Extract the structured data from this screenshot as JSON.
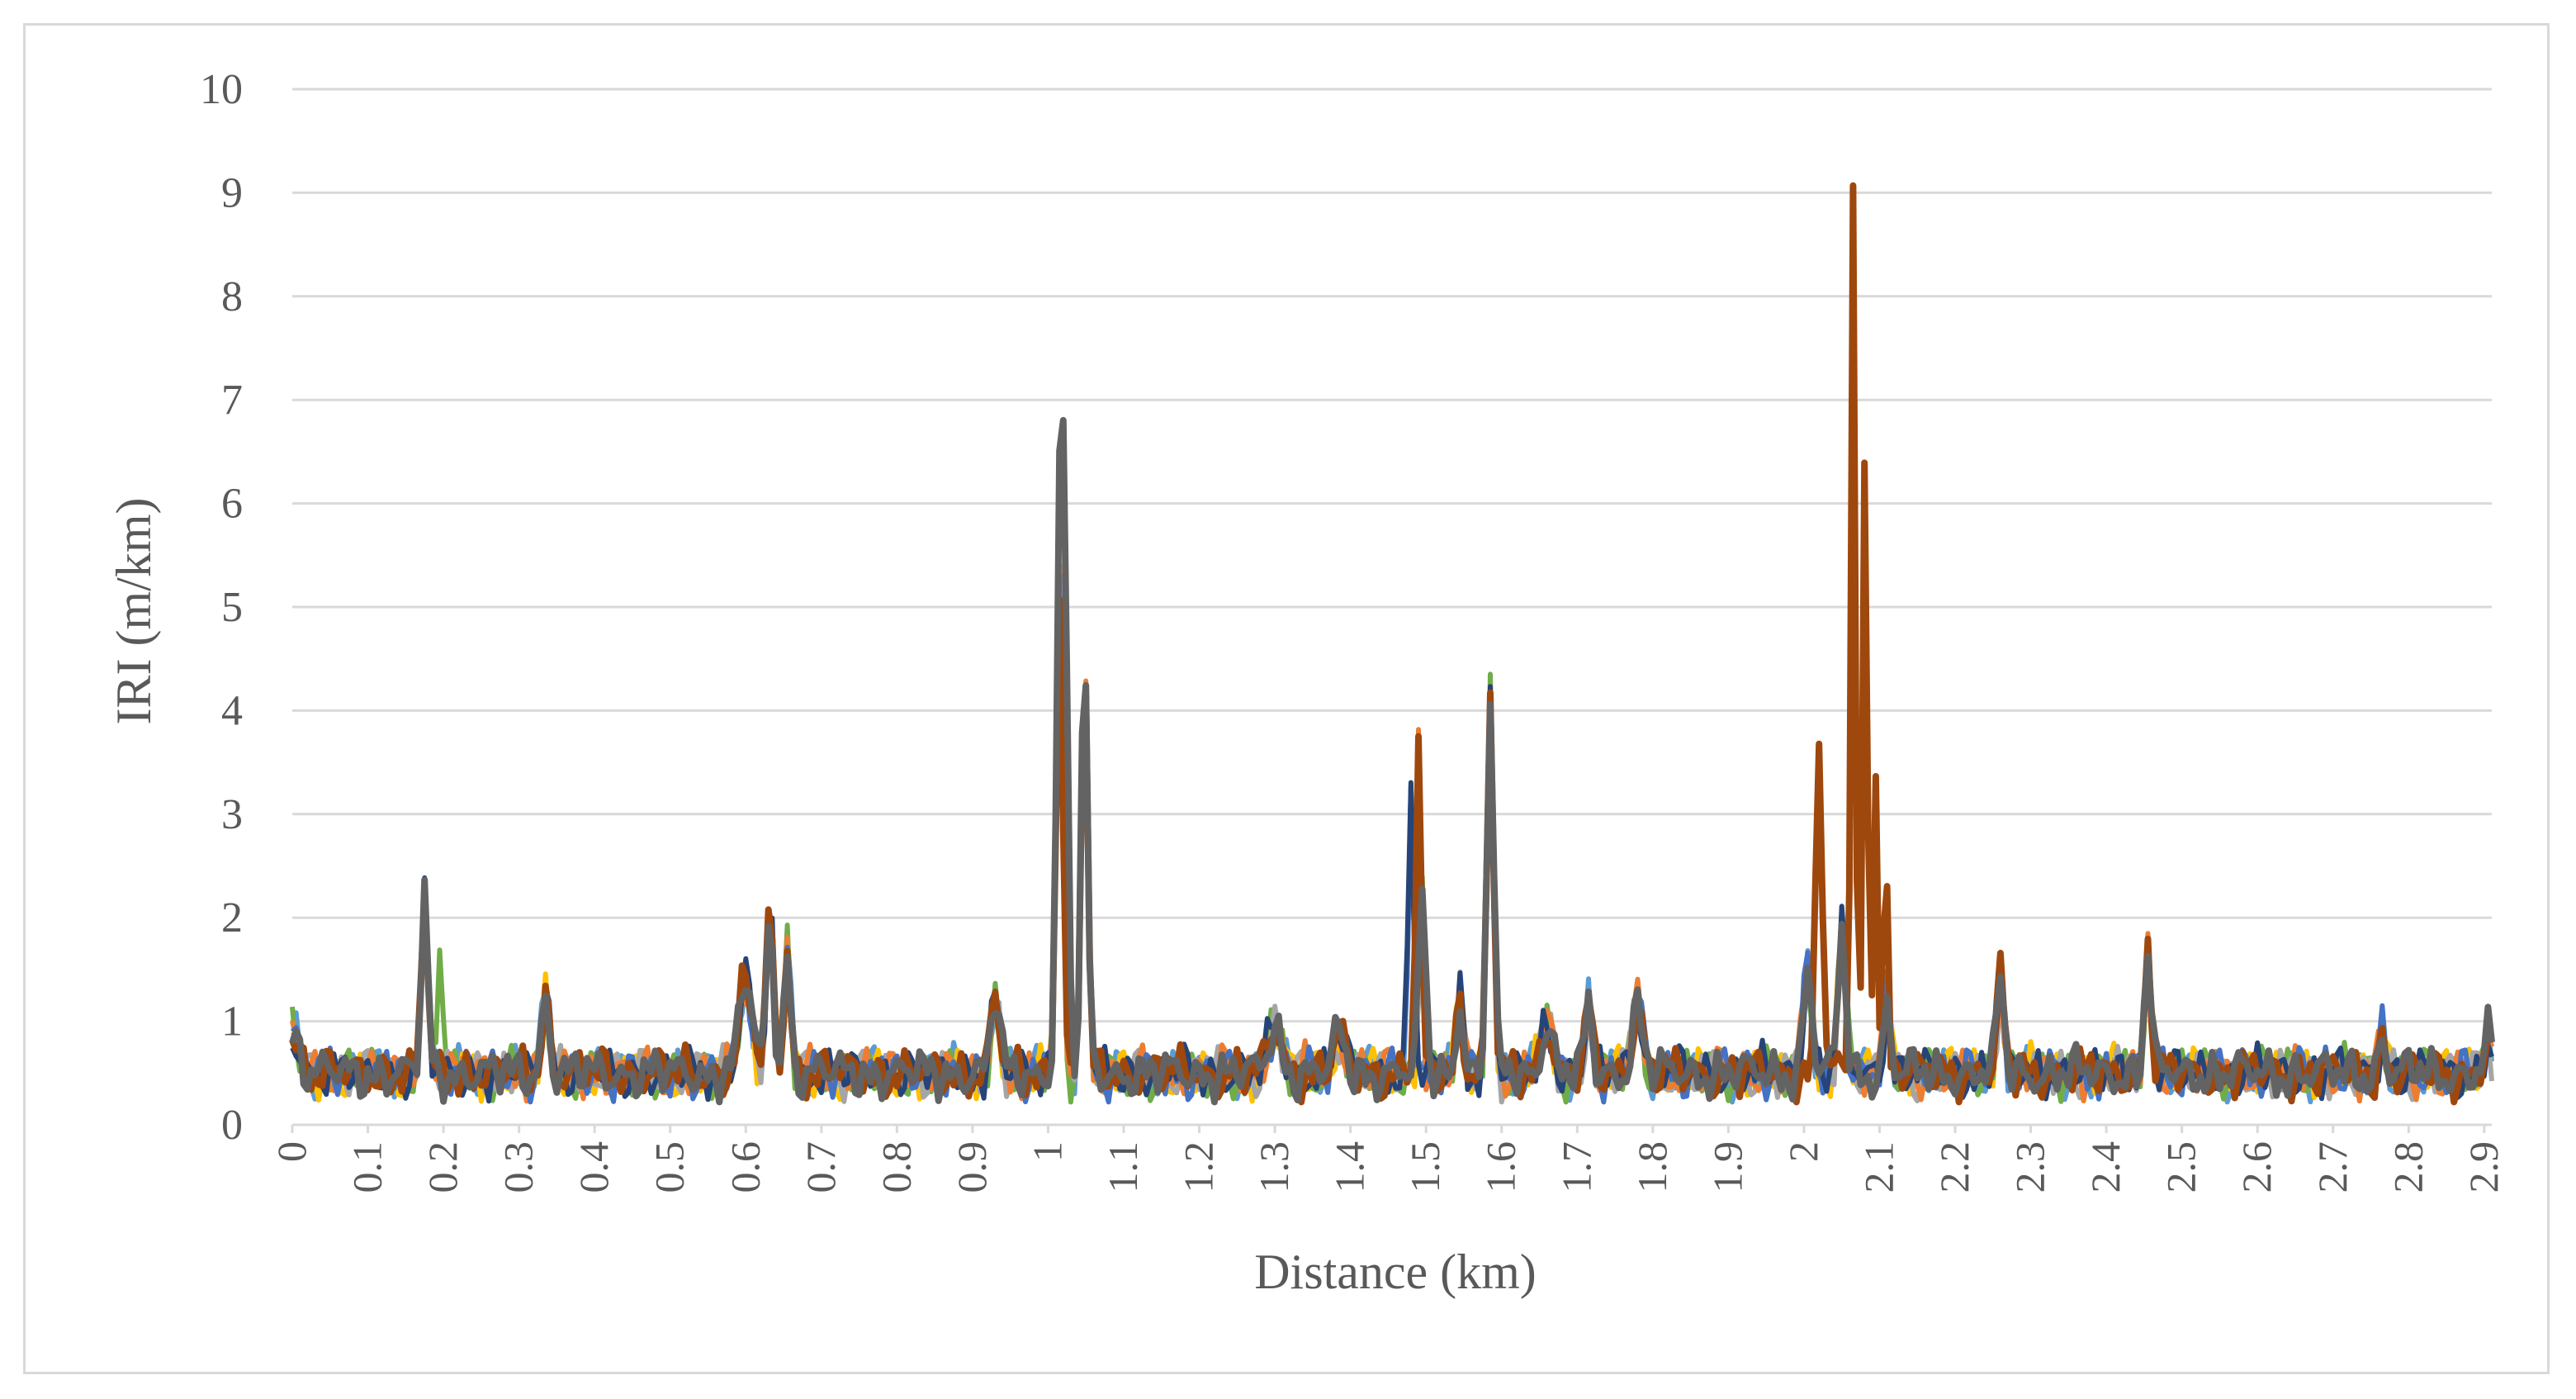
{
  "chart_data": {
    "type": "line",
    "xlabel": "Distance (km)",
    "ylabel": "IRI (m/km)",
    "ylim": [
      0,
      10
    ],
    "xlim": [
      0,
      2.91
    ],
    "y_ticks": [
      "0",
      "1",
      "2",
      "3",
      "4",
      "5",
      "6",
      "7",
      "8",
      "9",
      "10"
    ],
    "x_ticks": [
      "0",
      "0.1",
      "0.2",
      "0.3",
      "0.4",
      "0.5",
      "0.6",
      "0.7",
      "0.8",
      "0.9",
      "1",
      "1.1",
      "1.2",
      "1.3",
      "1.4",
      "1.5",
      "1.6",
      "1.7",
      "1.8",
      "1.9",
      "2",
      "2.1",
      "2.2",
      "2.3",
      "2.4",
      "2.5",
      "2.6",
      "2.7",
      "2.8",
      "2.9"
    ],
    "grid": true,
    "legend": "none",
    "series_colors": [
      "#4472c4",
      "#ed7d31",
      "#a5a5a5",
      "#ffc000",
      "#5b9bd5",
      "#70ad47",
      "#264478",
      "#9e480e",
      "#636363"
    ],
    "peaks": [
      {
        "x": 0.0,
        "h": 0.4,
        "w": 0.012,
        "series": [
          0,
          1,
          2,
          3,
          4,
          5,
          6,
          7,
          8
        ]
      },
      {
        "x": 0.175,
        "h": 1.7,
        "w": 0.006,
        "series": [
          0,
          1,
          2,
          3,
          4,
          5,
          6,
          7,
          8
        ]
      },
      {
        "x": 0.195,
        "h": 1.2,
        "w": 0.005,
        "series": [
          5
        ]
      },
      {
        "x": 0.335,
        "h": 0.75,
        "w": 0.007,
        "series": [
          0,
          1,
          2,
          3,
          4,
          5,
          6,
          7,
          8
        ]
      },
      {
        "x": 0.6,
        "h": 0.9,
        "w": 0.012,
        "series": [
          0,
          1,
          2,
          3,
          4,
          5,
          6,
          7,
          8
        ]
      },
      {
        "x": 0.632,
        "h": 1.5,
        "w": 0.007,
        "series": [
          0,
          1,
          2,
          3,
          4,
          5,
          6,
          7,
          8
        ]
      },
      {
        "x": 0.655,
        "h": 1.2,
        "w": 0.006,
        "series": [
          0,
          1,
          2,
          3,
          4,
          5,
          6,
          7,
          8
        ]
      },
      {
        "x": 0.93,
        "h": 0.75,
        "w": 0.008,
        "series": [
          0,
          1,
          2,
          3,
          4,
          5,
          6,
          7,
          8
        ]
      },
      {
        "x": 1.015,
        "h": 4.7,
        "w": 0.006,
        "series": [
          0,
          1,
          2,
          3,
          4,
          5,
          6,
          7,
          8
        ]
      },
      {
        "x": 1.022,
        "h": 4.4,
        "w": 0.006,
        "series": [
          8,
          6
        ]
      },
      {
        "x": 1.048,
        "h": 4.0,
        "w": 0.006,
        "series": [
          0,
          1,
          2,
          3,
          4,
          5,
          6,
          7,
          8
        ]
      },
      {
        "x": 1.3,
        "h": 0.45,
        "w": 0.012,
        "series": [
          0,
          1,
          2,
          3,
          4,
          5,
          6,
          7,
          8
        ]
      },
      {
        "x": 1.385,
        "h": 0.4,
        "w": 0.01,
        "series": [
          0,
          1,
          2,
          3,
          4,
          5,
          6,
          7,
          8
        ]
      },
      {
        "x": 1.48,
        "h": 2.9,
        "w": 0.005,
        "series": [
          6,
          0,
          4
        ]
      },
      {
        "x": 1.49,
        "h": 3.2,
        "w": 0.005,
        "series": [
          7,
          1
        ]
      },
      {
        "x": 1.495,
        "h": 1.8,
        "w": 0.006,
        "series": [
          2,
          3,
          5,
          8
        ]
      },
      {
        "x": 1.545,
        "h": 0.8,
        "w": 0.006,
        "series": [
          0,
          1,
          2,
          3,
          4,
          5,
          6,
          7,
          8
        ]
      },
      {
        "x": 1.585,
        "h": 3.7,
        "w": 0.006,
        "series": [
          0,
          1,
          2,
          3,
          4,
          5,
          6,
          7,
          8
        ]
      },
      {
        "x": 1.66,
        "h": 0.5,
        "w": 0.01,
        "series": [
          0,
          1,
          2,
          3,
          4,
          5,
          6,
          7,
          8
        ]
      },
      {
        "x": 1.715,
        "h": 0.7,
        "w": 0.006,
        "series": [
          0,
          1,
          2,
          3,
          4,
          5,
          6,
          7,
          8
        ]
      },
      {
        "x": 1.78,
        "h": 0.65,
        "w": 0.01,
        "series": [
          0,
          1,
          2,
          3,
          4,
          5,
          6,
          7,
          8
        ]
      },
      {
        "x": 2.005,
        "h": 1.0,
        "w": 0.008,
        "series": [
          0,
          1,
          2,
          3,
          4,
          5,
          6,
          8
        ]
      },
      {
        "x": 2.02,
        "h": 3.3,
        "w": 0.006,
        "series": [
          7
        ]
      },
      {
        "x": 2.05,
        "h": 1.4,
        "w": 0.007,
        "series": [
          0,
          1,
          2,
          3,
          4,
          5,
          6,
          8
        ]
      },
      {
        "x": 2.065,
        "h": 8.7,
        "w": 0.004,
        "series": [
          7
        ]
      },
      {
        "x": 2.081,
        "h": 6.3,
        "w": 0.004,
        "series": [
          7
        ]
      },
      {
        "x": 2.095,
        "h": 3.1,
        "w": 0.004,
        "series": [
          7
        ]
      },
      {
        "x": 2.108,
        "h": 2.3,
        "w": 0.004,
        "series": [
          7
        ]
      },
      {
        "x": 2.11,
        "h": 0.7,
        "w": 0.006,
        "series": [
          0,
          1,
          2,
          3,
          4,
          5,
          6,
          8
        ]
      },
      {
        "x": 2.26,
        "h": 1.0,
        "w": 0.006,
        "series": [
          0,
          1,
          2,
          3,
          4,
          5,
          6,
          7,
          8
        ]
      },
      {
        "x": 2.455,
        "h": 1.25,
        "w": 0.006,
        "series": [
          0,
          1,
          2,
          3,
          4,
          5,
          6,
          7,
          8
        ]
      },
      {
        "x": 2.765,
        "h": 0.35,
        "w": 0.006,
        "series": [
          0,
          1,
          2,
          3,
          4,
          5,
          6,
          7,
          8
        ]
      },
      {
        "x": 2.905,
        "h": 0.35,
        "w": 0.006,
        "series": [
          0,
          1,
          2,
          3,
          4,
          5,
          6,
          7,
          8
        ]
      }
    ]
  }
}
